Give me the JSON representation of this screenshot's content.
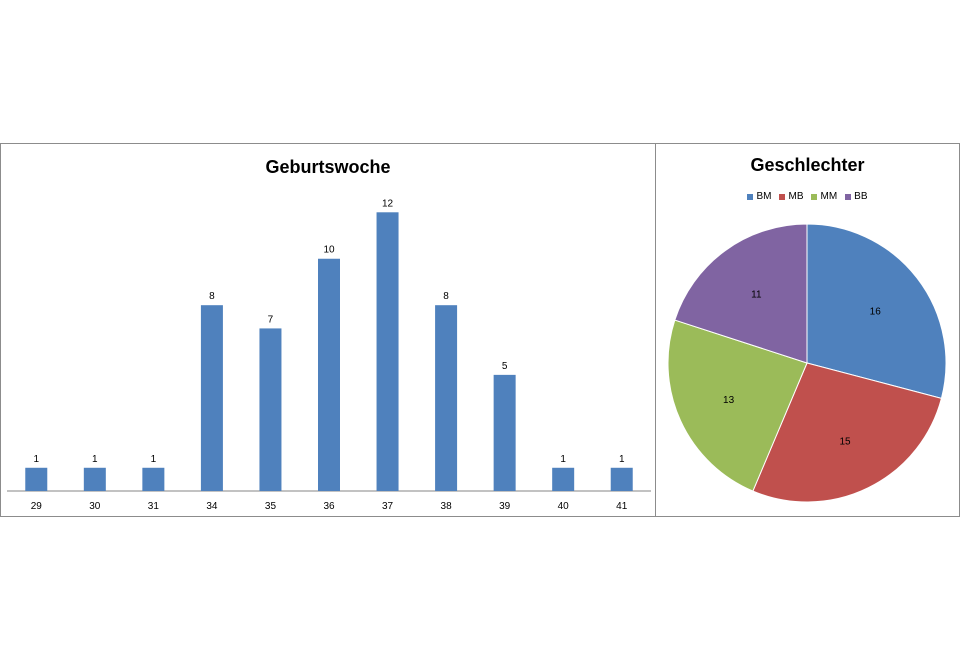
{
  "chart_data": [
    {
      "type": "bar",
      "title": "Geburtswoche",
      "categories": [
        "29",
        "30",
        "31",
        "34",
        "35",
        "36",
        "37",
        "38",
        "39",
        "40",
        "41"
      ],
      "values": [
        1,
        1,
        1,
        8,
        7,
        10,
        12,
        8,
        5,
        1,
        1
      ],
      "data_labels": true,
      "ylim": [
        0,
        12.4
      ],
      "grid": false,
      "color": "#4F81BD"
    },
    {
      "type": "pie",
      "title": "Geschlechter",
      "legend_position": "top",
      "slices": [
        {
          "label": "BM",
          "value": 16,
          "color": "#4F81BD"
        },
        {
          "label": "MB",
          "value": 15,
          "color": "#C0504D"
        },
        {
          "label": "MM",
          "value": 13,
          "color": "#9BBB59"
        },
        {
          "label": "BB",
          "value": 11,
          "color": "#8064A2"
        }
      ]
    }
  ]
}
